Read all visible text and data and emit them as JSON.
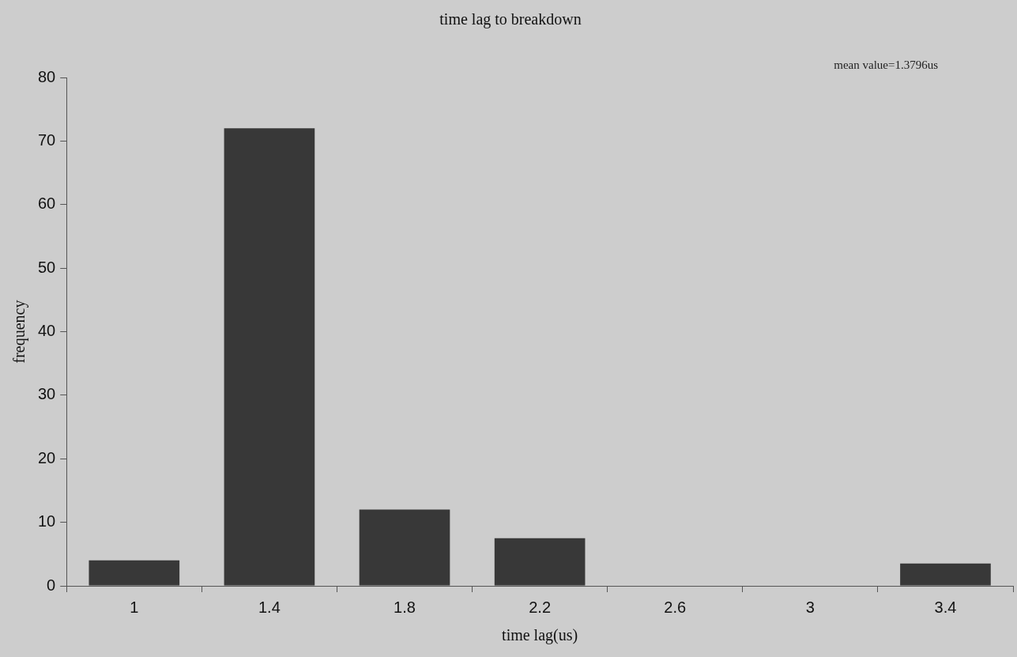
{
  "chart_data": {
    "type": "bar",
    "title": "time lag to breakdown",
    "xlabel": "time lag(us)",
    "ylabel": "frequency",
    "categories": [
      "1",
      "1.4",
      "1.8",
      "2.2",
      "2.6",
      "3",
      "3.4"
    ],
    "values": [
      4,
      72,
      12,
      7.5,
      0,
      0,
      3.5
    ],
    "color": "#383838",
    "ylim": [
      0,
      80
    ],
    "yticks": [
      0,
      10,
      20,
      30,
      40,
      50,
      60,
      70,
      80
    ],
    "grid": false,
    "legend": false,
    "annotations": [
      "mean value=1.3796us"
    ]
  }
}
